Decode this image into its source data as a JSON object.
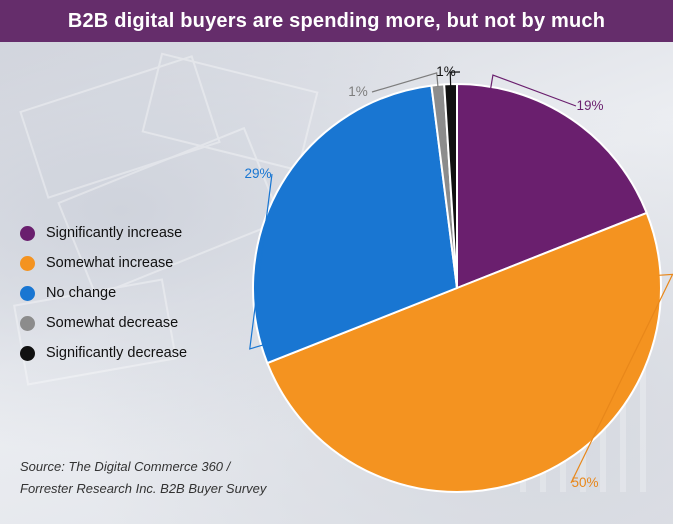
{
  "header": {
    "title": "B2B digital buyers are spending more, but not by much"
  },
  "chart_data": {
    "type": "pie",
    "title": "B2B digital buyers are spending more, but not by much",
    "legend_position": "left",
    "series": [
      {
        "name": "Significantly increase",
        "value": 19,
        "label": "19%",
        "color": "#6a1f6e"
      },
      {
        "name": "Somewhat increase",
        "value": 50,
        "label": "50%",
        "color": "#f49320"
      },
      {
        "name": "No change",
        "value": 29,
        "label": "29%",
        "color": "#1976d2"
      },
      {
        "name": "Somewhat decrease",
        "value": 1,
        "label": "1%",
        "color": "#8c8c8c"
      },
      {
        "name": "Significantly decrease",
        "value": 1,
        "label": "1%",
        "color": "#111111"
      }
    ]
  },
  "source": {
    "line1": "Source: The Digital Commerce 360 /",
    "line2": "Forrester Research Inc. B2B Buyer Survey"
  }
}
